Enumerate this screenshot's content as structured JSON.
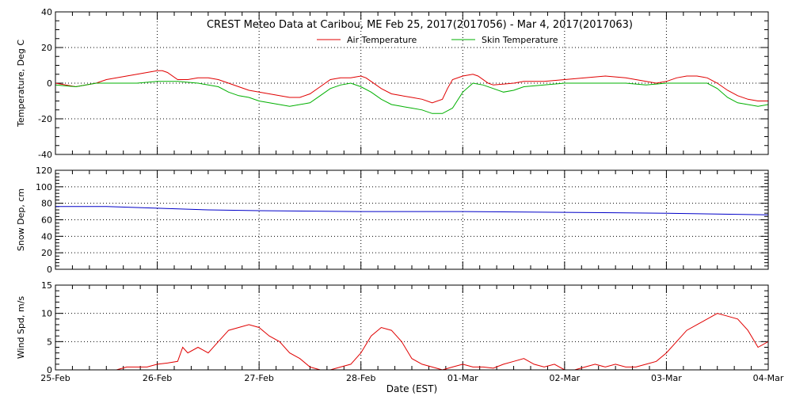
{
  "header": {
    "title": "CREST Meteo Data at Caribou, ME   Feb 25, 2017(2017056) - Mar  4, 2017(2017063)"
  },
  "xaxis": {
    "label": "Date (EST)",
    "ticks": [
      "25-Feb",
      "26-Feb",
      "27-Feb",
      "28-Feb",
      "01-Mar",
      "02-Mar",
      "03-Mar",
      "04-Mar"
    ]
  },
  "chart_data": [
    {
      "type": "line",
      "ylabel": "Temperature, Deg C",
      "ylim": [
        -40,
        40
      ],
      "yticks": [
        "40",
        "20",
        "0",
        "-20",
        "-40"
      ],
      "grid": true,
      "legend": "top-center",
      "x_unit": "days since Feb 25",
      "series": [
        {
          "name": "Air Temperature",
          "color": "#e00000",
          "points": [
            [
              0,
              0
            ],
            [
              0.1,
              -1
            ],
            [
              0.2,
              -2
            ],
            [
              0.3,
              -1
            ],
            [
              0.4,
              0
            ],
            [
              0.5,
              2
            ],
            [
              0.6,
              3
            ],
            [
              0.7,
              4
            ],
            [
              0.8,
              5
            ],
            [
              0.9,
              6
            ],
            [
              1.0,
              7
            ],
            [
              1.05,
              7
            ],
            [
              1.1,
              6
            ],
            [
              1.2,
              2
            ],
            [
              1.3,
              2
            ],
            [
              1.4,
              3
            ],
            [
              1.5,
              3
            ],
            [
              1.6,
              2
            ],
            [
              1.7,
              0
            ],
            [
              1.8,
              -2
            ],
            [
              1.9,
              -4
            ],
            [
              2.0,
              -5
            ],
            [
              2.1,
              -6
            ],
            [
              2.2,
              -7
            ],
            [
              2.3,
              -8
            ],
            [
              2.4,
              -8
            ],
            [
              2.5,
              -6
            ],
            [
              2.6,
              -2
            ],
            [
              2.7,
              2
            ],
            [
              2.8,
              3
            ],
            [
              2.9,
              3
            ],
            [
              3.0,
              4
            ],
            [
              3.05,
              3
            ],
            [
              3.1,
              1
            ],
            [
              3.2,
              -3
            ],
            [
              3.3,
              -6
            ],
            [
              3.4,
              -7
            ],
            [
              3.5,
              -8
            ],
            [
              3.6,
              -9
            ],
            [
              3.7,
              -11
            ],
            [
              3.8,
              -9
            ],
            [
              3.85,
              -3
            ],
            [
              3.9,
              2
            ],
            [
              4.0,
              4
            ],
            [
              4.1,
              5
            ],
            [
              4.15,
              4
            ],
            [
              4.25,
              0
            ],
            [
              4.3,
              -1
            ],
            [
              4.5,
              0
            ],
            [
              4.6,
              1
            ],
            [
              4.8,
              1
            ],
            [
              5.0,
              2
            ],
            [
              5.2,
              3
            ],
            [
              5.4,
              4
            ],
            [
              5.6,
              3
            ],
            [
              5.7,
              2
            ],
            [
              5.8,
              1
            ],
            [
              5.9,
              0
            ],
            [
              6.0,
              1
            ],
            [
              6.1,
              3
            ],
            [
              6.2,
              4
            ],
            [
              6.3,
              4
            ],
            [
              6.4,
              3
            ],
            [
              6.5,
              0
            ],
            [
              6.6,
              -4
            ],
            [
              6.7,
              -7
            ],
            [
              6.8,
              -9
            ],
            [
              6.9,
              -10
            ],
            [
              7.0,
              -10
            ],
            [
              7.1,
              -11
            ],
            [
              7.2,
              -12
            ],
            [
              7.3,
              -13
            ],
            [
              7.35,
              -14
            ],
            [
              7.4,
              -13
            ],
            [
              7.5,
              -10
            ],
            [
              7.6,
              -9
            ],
            [
              7.7,
              -9
            ],
            [
              7.8,
              -10
            ],
            [
              7.9,
              -12
            ],
            [
              8.0,
              -14
            ],
            [
              8.1,
              -16
            ],
            [
              8.2,
              -17
            ],
            [
              8.25,
              -17
            ]
          ]
        },
        {
          "name": "Skin Temperature",
          "color": "#00b000",
          "points": [
            [
              0,
              -1
            ],
            [
              0.2,
              -2
            ],
            [
              0.4,
              0
            ],
            [
              0.6,
              0
            ],
            [
              0.8,
              0
            ],
            [
              1.0,
              1
            ],
            [
              1.2,
              1
            ],
            [
              1.4,
              0
            ],
            [
              1.5,
              -1
            ],
            [
              1.6,
              -2
            ],
            [
              1.7,
              -5
            ],
            [
              1.8,
              -7
            ],
            [
              1.9,
              -8
            ],
            [
              2.0,
              -10
            ],
            [
              2.1,
              -11
            ],
            [
              2.2,
              -12
            ],
            [
              2.3,
              -13
            ],
            [
              2.4,
              -12
            ],
            [
              2.5,
              -11
            ],
            [
              2.6,
              -7
            ],
            [
              2.7,
              -3
            ],
            [
              2.8,
              -1
            ],
            [
              2.9,
              0
            ],
            [
              3.0,
              -2
            ],
            [
              3.1,
              -5
            ],
            [
              3.2,
              -9
            ],
            [
              3.3,
              -12
            ],
            [
              3.4,
              -13
            ],
            [
              3.5,
              -14
            ],
            [
              3.6,
              -15
            ],
            [
              3.7,
              -17
            ],
            [
              3.8,
              -17
            ],
            [
              3.9,
              -14
            ],
            [
              4.0,
              -5
            ],
            [
              4.1,
              0
            ],
            [
              4.2,
              -1
            ],
            [
              4.3,
              -3
            ],
            [
              4.4,
              -5
            ],
            [
              4.5,
              -4
            ],
            [
              4.6,
              -2
            ],
            [
              4.8,
              -1
            ],
            [
              5.0,
              0
            ],
            [
              5.2,
              0
            ],
            [
              5.4,
              0
            ],
            [
              5.6,
              0
            ],
            [
              5.8,
              -1
            ],
            [
              6.0,
              0
            ],
            [
              6.2,
              0
            ],
            [
              6.4,
              0
            ],
            [
              6.5,
              -3
            ],
            [
              6.6,
              -8
            ],
            [
              6.7,
              -11
            ],
            [
              6.8,
              -12
            ],
            [
              6.9,
              -13
            ],
            [
              7.0,
              -12
            ],
            [
              7.1,
              -15
            ],
            [
              7.2,
              -17
            ],
            [
              7.25,
              -18
            ],
            [
              7.3,
              -17
            ],
            [
              7.5,
              -11
            ],
            [
              7.6,
              -9
            ],
            [
              7.7,
              -9
            ],
            [
              7.8,
              -11
            ],
            [
              7.9,
              -14
            ],
            [
              8.0,
              -17
            ],
            [
              8.1,
              -19
            ],
            [
              8.2,
              -20
            ],
            [
              8.25,
              -20
            ]
          ]
        }
      ]
    },
    {
      "type": "line",
      "ylabel": "Snow Dep, cm",
      "ylim": [
        0,
        120
      ],
      "yticks": [
        "120",
        "100",
        "80",
        "60",
        "40",
        "20",
        "0"
      ],
      "grid": true,
      "x_unit": "days since Feb 25",
      "series": [
        {
          "color": "#0000c8",
          "points": [
            [
              0,
              76
            ],
            [
              0.5,
              76
            ],
            [
              1.0,
              74
            ],
            [
              1.5,
              72
            ],
            [
              2.0,
              71
            ],
            [
              3.0,
              70
            ],
            [
              4.0,
              70
            ],
            [
              5.0,
              69
            ],
            [
              6.0,
              68
            ],
            [
              7.0,
              66
            ],
            [
              8.0,
              65
            ],
            [
              8.25,
              65
            ]
          ]
        }
      ]
    },
    {
      "type": "line",
      "ylabel": "Wind Spd, m/s",
      "ylim": [
        0,
        15
      ],
      "yticks": [
        "15",
        "10",
        "5",
        "0"
      ],
      "grid": true,
      "x_unit": "days since Feb 25",
      "series": [
        {
          "color": "#e00000",
          "points": [
            [
              0.6,
              0
            ],
            [
              0.7,
              0.5
            ],
            [
              0.8,
              0.5
            ],
            [
              0.9,
              0.5
            ],
            [
              1.0,
              1
            ],
            [
              1.1,
              1.2
            ],
            [
              1.2,
              1.5
            ],
            [
              1.25,
              4
            ],
            [
              1.3,
              3
            ],
            [
              1.4,
              4
            ],
            [
              1.5,
              3
            ],
            [
              1.6,
              5
            ],
            [
              1.7,
              7
            ],
            [
              1.8,
              7.5
            ],
            [
              1.9,
              8
            ],
            [
              2.0,
              7.5
            ],
            [
              2.1,
              6
            ],
            [
              2.2,
              5
            ],
            [
              2.3,
              3
            ],
            [
              2.4,
              2
            ],
            [
              2.5,
              0.5
            ],
            [
              2.6,
              0
            ],
            [
              2.7,
              0
            ],
            [
              2.8,
              0.5
            ],
            [
              2.9,
              1
            ],
            [
              3.0,
              3
            ],
            [
              3.1,
              6
            ],
            [
              3.2,
              7.5
            ],
            [
              3.3,
              7
            ],
            [
              3.4,
              5
            ],
            [
              3.5,
              2
            ],
            [
              3.6,
              1
            ],
            [
              3.7,
              0.5
            ],
            [
              3.8,
              0
            ],
            [
              3.9,
              0.5
            ],
            [
              4.0,
              1
            ],
            [
              4.1,
              0.5
            ],
            [
              4.2,
              0.5
            ],
            [
              4.3,
              0.3
            ],
            [
              4.4,
              1
            ],
            [
              4.5,
              1.5
            ],
            [
              4.6,
              2
            ],
            [
              4.7,
              1
            ],
            [
              4.8,
              0.5
            ],
            [
              4.9,
              1
            ],
            [
              5.0,
              0
            ],
            [
              5.1,
              0
            ],
            [
              5.2,
              0.5
            ],
            [
              5.3,
              1
            ],
            [
              5.4,
              0.5
            ],
            [
              5.5,
              1
            ],
            [
              5.6,
              0.5
            ],
            [
              5.7,
              0.5
            ],
            [
              5.8,
              1
            ],
            [
              5.9,
              1.5
            ],
            [
              6.0,
              3
            ],
            [
              6.1,
              5
            ],
            [
              6.2,
              7
            ],
            [
              6.3,
              8
            ],
            [
              6.4,
              9
            ],
            [
              6.5,
              10
            ],
            [
              6.6,
              9.5
            ],
            [
              6.7,
              9
            ],
            [
              6.8,
              7
            ],
            [
              6.9,
              4
            ],
            [
              7.0,
              5
            ],
            [
              7.1,
              4
            ],
            [
              7.2,
              2
            ],
            [
              7.3,
              3
            ],
            [
              7.4,
              6
            ],
            [
              7.5,
              7
            ],
            [
              7.6,
              6.5
            ],
            [
              7.7,
              6
            ],
            [
              7.8,
              5
            ],
            [
              7.9,
              6
            ],
            [
              8.0,
              5
            ],
            [
              8.05,
              7
            ],
            [
              8.1,
              8.5
            ],
            [
              8.15,
              5
            ],
            [
              8.2,
              4
            ],
            [
              8.25,
              5
            ]
          ]
        }
      ]
    }
  ]
}
